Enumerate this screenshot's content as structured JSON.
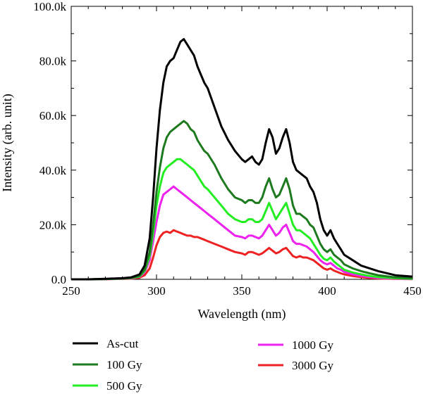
{
  "chart_data": {
    "type": "line",
    "xlabel": "Wavelength (nm)",
    "ylabel": "Intensity (arb. unit)",
    "xlim": [
      250,
      450
    ],
    "ylim": [
      0,
      100000
    ],
    "x_ticks": [
      250,
      300,
      350,
      400,
      450
    ],
    "x_tick_labels": [
      "250",
      "300",
      "350",
      "400",
      "450"
    ],
    "y_ticks": [
      0,
      20000,
      40000,
      60000,
      80000,
      100000
    ],
    "y_tick_labels": [
      "0.0",
      "20.0k",
      "40.0k",
      "60.0k",
      "80.0k",
      "100.0k"
    ],
    "grid": false,
    "legend_placement": "bottom",
    "x": [
      250,
      260,
      270,
      280,
      285,
      290,
      293,
      296,
      298,
      300,
      302,
      304,
      306,
      308,
      310,
      312,
      314,
      316,
      318,
      320,
      322,
      324,
      326,
      328,
      330,
      334,
      338,
      342,
      346,
      350,
      352,
      354,
      356,
      358,
      360,
      362,
      364,
      366,
      368,
      370,
      372,
      374,
      376,
      378,
      380,
      382,
      384,
      386,
      388,
      390,
      392,
      394,
      396,
      398,
      400,
      402,
      404,
      406,
      408,
      410,
      415,
      420,
      425,
      430,
      440,
      450
    ],
    "series": [
      {
        "name": "As-cut",
        "color": "#000000",
        "values": [
          0,
          0,
          200,
          400,
          700,
          1800,
          5000,
          15000,
          30000,
          48000,
          62000,
          72000,
          78000,
          80000,
          81000,
          84000,
          87000,
          88000,
          86000,
          84000,
          82000,
          78000,
          75000,
          72000,
          70000,
          63000,
          56000,
          51000,
          47000,
          44000,
          43000,
          44000,
          45000,
          43000,
          42000,
          44000,
          50000,
          55000,
          52000,
          46000,
          48000,
          52000,
          55000,
          50000,
          43000,
          40000,
          39000,
          38000,
          37000,
          34000,
          32000,
          28000,
          22000,
          18000,
          16000,
          18000,
          15000,
          13000,
          11000,
          9000,
          7000,
          5000,
          4000,
          3000,
          1500,
          1000
        ]
      },
      {
        "name": "100 Gy",
        "color": "#1e7a1e",
        "values": [
          0,
          0,
          100,
          300,
          500,
          1200,
          3500,
          10000,
          20000,
          32000,
          41000,
          48000,
          52000,
          54000,
          55000,
          56000,
          57000,
          58000,
          57000,
          55000,
          54000,
          51000,
          49000,
          47000,
          46000,
          42000,
          37000,
          33000,
          30000,
          29000,
          28000,
          29000,
          29000,
          28000,
          28000,
          30000,
          34000,
          37000,
          33000,
          30000,
          31000,
          34000,
          37000,
          33000,
          27000,
          24000,
          24000,
          23000,
          22000,
          20000,
          19000,
          16000,
          13000,
          11000,
          10000,
          11000,
          9000,
          8000,
          7000,
          5500,
          4000,
          3000,
          2200,
          1500,
          700,
          400
        ]
      },
      {
        "name": "500 Gy",
        "color": "#22ee22",
        "values": [
          0,
          0,
          100,
          250,
          450,
          1000,
          3000,
          8500,
          17000,
          27000,
          34000,
          39000,
          41000,
          42000,
          43000,
          44000,
          44000,
          43000,
          42000,
          41000,
          40000,
          38000,
          36000,
          34000,
          33000,
          30000,
          27000,
          24000,
          22000,
          21000,
          21000,
          22000,
          22000,
          21000,
          21000,
          22000,
          25000,
          28000,
          25000,
          22000,
          24000,
          26000,
          28000,
          24000,
          20000,
          18000,
          18000,
          17000,
          16000,
          15000,
          13000,
          11000,
          9000,
          7500,
          7000,
          8000,
          6500,
          5500,
          4500,
          3500,
          2500,
          1800,
          1200,
          800,
          400,
          200
        ]
      },
      {
        "name": "1000 Gy",
        "color": "#ee22ee",
        "values": [
          0,
          0,
          80,
          200,
          350,
          900,
          2500,
          7000,
          14000,
          21000,
          27000,
          31000,
          32000,
          33000,
          34000,
          33000,
          32000,
          31000,
          30000,
          29000,
          28000,
          27000,
          26000,
          25000,
          24000,
          22000,
          20000,
          18000,
          16000,
          15500,
          15000,
          16000,
          16000,
          15500,
          15000,
          16000,
          18000,
          20000,
          18000,
          16000,
          17000,
          19000,
          20000,
          17000,
          14000,
          13000,
          13000,
          12500,
          12000,
          11000,
          10000,
          8500,
          7000,
          6000,
          5500,
          6000,
          5000,
          4000,
          3500,
          2700,
          1800,
          1200,
          800,
          500,
          250,
          100
        ]
      },
      {
        "name": "3000 Gy",
        "color": "#ee2222",
        "values": [
          0,
          0,
          50,
          150,
          250,
          600,
          1500,
          4000,
          8000,
          12500,
          15500,
          17000,
          17500,
          17000,
          18000,
          17500,
          17000,
          16500,
          16000,
          16000,
          15500,
          15500,
          15000,
          14500,
          14000,
          13000,
          12000,
          11000,
          10000,
          9500,
          9000,
          10000,
          10000,
          9500,
          9000,
          9500,
          10500,
          11500,
          10500,
          9500,
          10000,
          11000,
          11500,
          10000,
          8500,
          8000,
          8500,
          8000,
          8000,
          7500,
          7000,
          6000,
          5000,
          4000,
          3500,
          4000,
          3200,
          2700,
          2200,
          1800,
          1200,
          800,
          500,
          300,
          150,
          80
        ]
      }
    ]
  }
}
